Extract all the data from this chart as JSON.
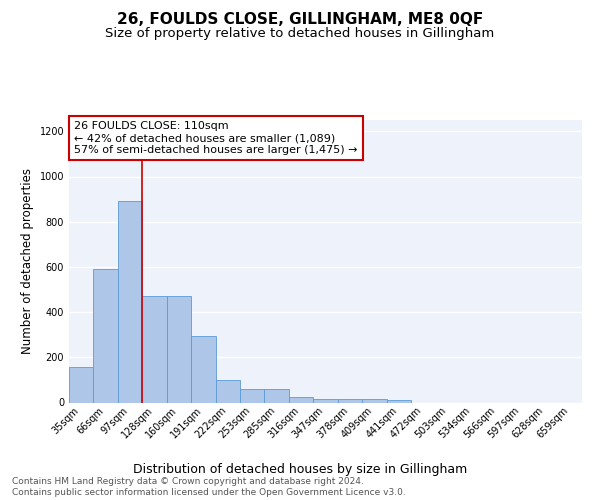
{
  "title": "26, FOULDS CLOSE, GILLINGHAM, ME8 0QF",
  "subtitle": "Size of property relative to detached houses in Gillingham",
  "xlabel": "Distribution of detached houses by size in Gillingham",
  "ylabel": "Number of detached properties",
  "categories": [
    "35sqm",
    "66sqm",
    "97sqm",
    "128sqm",
    "160sqm",
    "191sqm",
    "222sqm",
    "253sqm",
    "285sqm",
    "316sqm",
    "347sqm",
    "378sqm",
    "409sqm",
    "441sqm",
    "472sqm",
    "503sqm",
    "534sqm",
    "566sqm",
    "597sqm",
    "628sqm",
    "659sqm"
  ],
  "values": [
    155,
    590,
    893,
    470,
    470,
    295,
    100,
    58,
    58,
    26,
    14,
    14,
    14,
    11,
    0,
    0,
    0,
    0,
    0,
    0,
    0
  ],
  "bar_color": "#aec6e8",
  "bar_edge_color": "#5b9bd5",
  "background_color": "#eef3fb",
  "grid_color": "#ffffff",
  "annotation_box_color": "#cc0000",
  "annotation_text": "26 FOULDS CLOSE: 110sqm\n← 42% of detached houses are smaller (1,089)\n57% of semi-detached houses are larger (1,475) →",
  "red_line_x": 2.5,
  "ylim": [
    0,
    1250
  ],
  "yticks": [
    0,
    200,
    400,
    600,
    800,
    1000,
    1200
  ],
  "footer_text": "Contains HM Land Registry data © Crown copyright and database right 2024.\nContains public sector information licensed under the Open Government Licence v3.0.",
  "title_fontsize": 11,
  "subtitle_fontsize": 9.5,
  "xlabel_fontsize": 9,
  "ylabel_fontsize": 8.5,
  "annotation_fontsize": 8,
  "footer_fontsize": 6.5,
  "tick_fontsize": 7
}
